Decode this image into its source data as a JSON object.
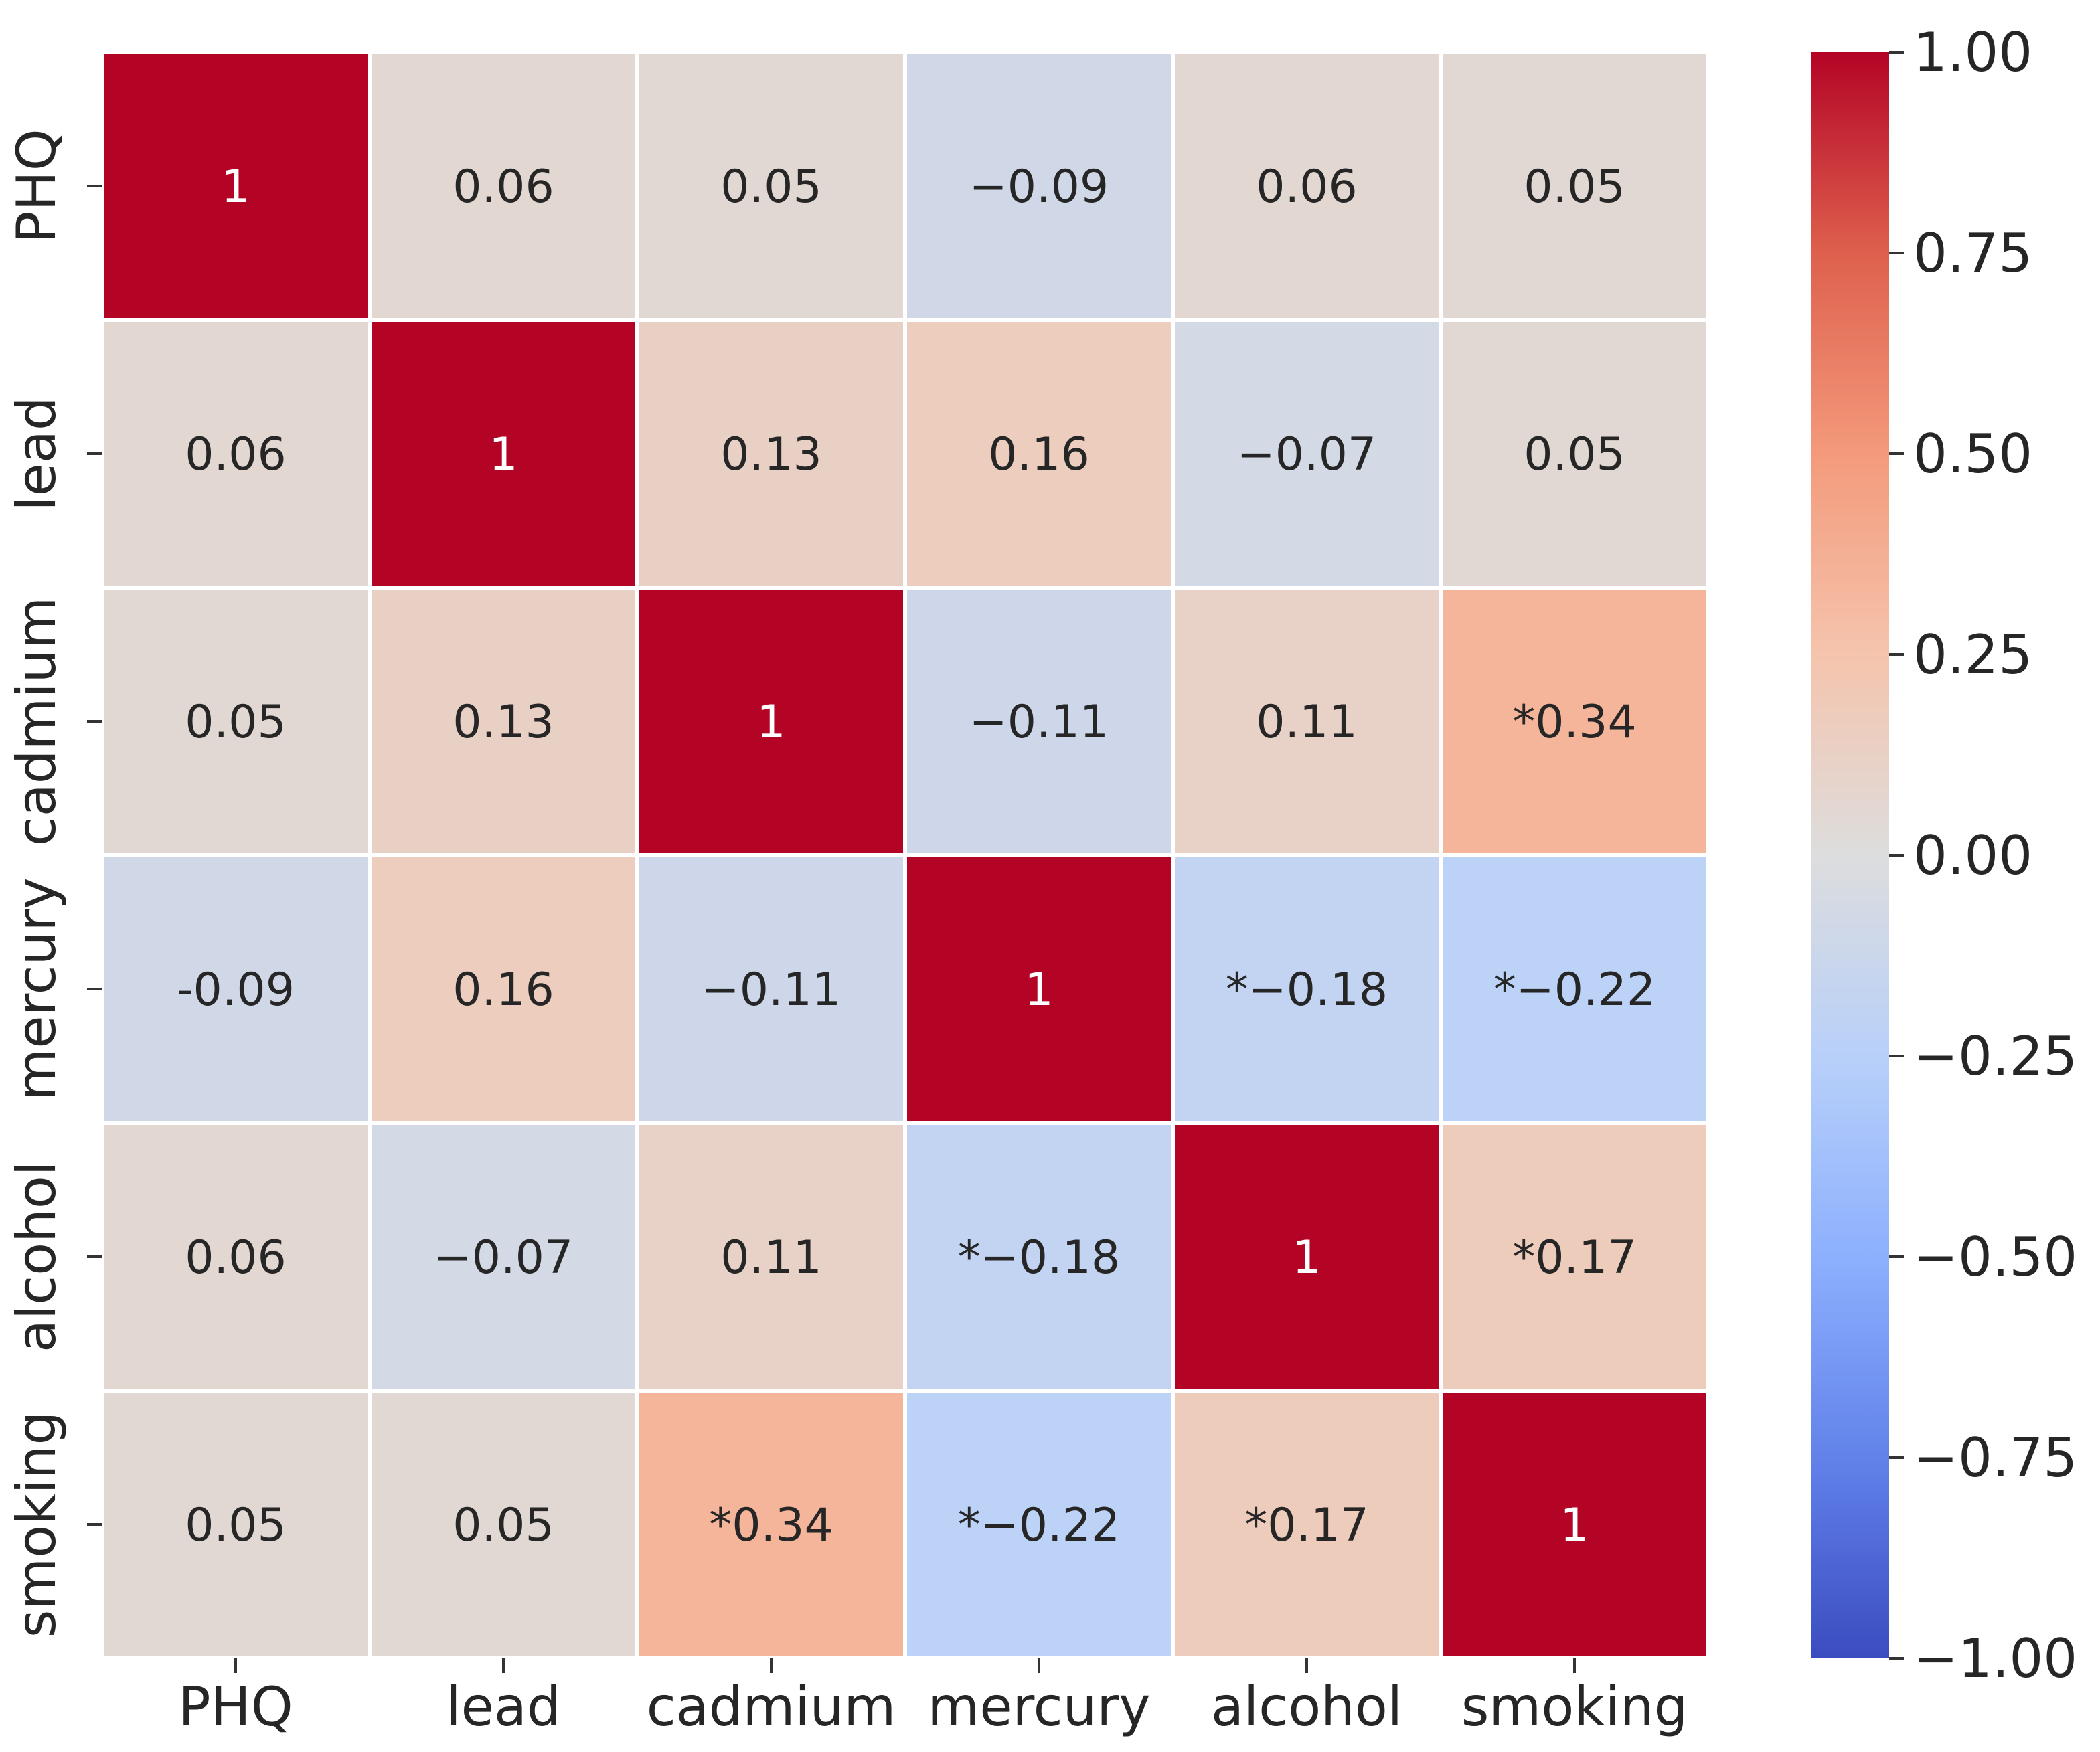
{
  "chart_data": {
    "type": "heatmap",
    "title": "",
    "xlabel": "",
    "ylabel": "",
    "variables": [
      "PHQ",
      "lead",
      "cadmium",
      "mercury",
      "alcohol",
      "smoking"
    ],
    "cells": [
      [
        {
          "value": 1,
          "label": "1"
        },
        {
          "value": 0.06,
          "label": "0.06"
        },
        {
          "value": 0.05,
          "label": "0.05"
        },
        {
          "value": -0.09,
          "label": "−0.09"
        },
        {
          "value": 0.06,
          "label": "0.06"
        },
        {
          "value": 0.05,
          "label": "0.05"
        }
      ],
      [
        {
          "value": 0.06,
          "label": "0.06"
        },
        {
          "value": 1,
          "label": "1"
        },
        {
          "value": 0.13,
          "label": "0.13"
        },
        {
          "value": 0.16,
          "label": "0.16"
        },
        {
          "value": -0.07,
          "label": "−0.07"
        },
        {
          "value": 0.05,
          "label": "0.05"
        }
      ],
      [
        {
          "value": 0.05,
          "label": "0.05"
        },
        {
          "value": 0.13,
          "label": "0.13"
        },
        {
          "value": 1,
          "label": "1"
        },
        {
          "value": -0.11,
          "label": "−0.11"
        },
        {
          "value": 0.11,
          "label": "0.11"
        },
        {
          "value": 0.34,
          "label": "*0.34"
        }
      ],
      [
        {
          "value": -0.09,
          "label": "-0.09"
        },
        {
          "value": 0.16,
          "label": "0.16"
        },
        {
          "value": -0.11,
          "label": "−0.11"
        },
        {
          "value": 1,
          "label": "1"
        },
        {
          "value": -0.18,
          "label": "*−0.18"
        },
        {
          "value": -0.22,
          "label": "*−0.22"
        }
      ],
      [
        {
          "value": 0.06,
          "label": "0.06"
        },
        {
          "value": -0.07,
          "label": "−0.07"
        },
        {
          "value": 0.11,
          "label": "0.11"
        },
        {
          "value": -0.18,
          "label": "*−0.18"
        },
        {
          "value": 1,
          "label": "1"
        },
        {
          "value": 0.17,
          "label": "*0.17"
        }
      ],
      [
        {
          "value": 0.05,
          "label": "0.05"
        },
        {
          "value": 0.05,
          "label": "0.05"
        },
        {
          "value": 0.34,
          "label": "*0.34"
        },
        {
          "value": -0.22,
          "label": "*−0.22"
        },
        {
          "value": 0.17,
          "label": "*0.17"
        },
        {
          "value": 1,
          "label": "1"
        }
      ]
    ],
    "colorbar": {
      "colormap": "coolwarm",
      "range": [
        -1,
        1
      ],
      "ticks": [
        1,
        0.75,
        0.5,
        0.25,
        0,
        -0.25,
        -0.5,
        -0.75,
        -1
      ],
      "tick_labels": [
        "1.00",
        "0.75",
        "0.50",
        "0.25",
        "0.00",
        "−0.25",
        "−0.50",
        "−0.75",
        "−1.00"
      ]
    }
  }
}
